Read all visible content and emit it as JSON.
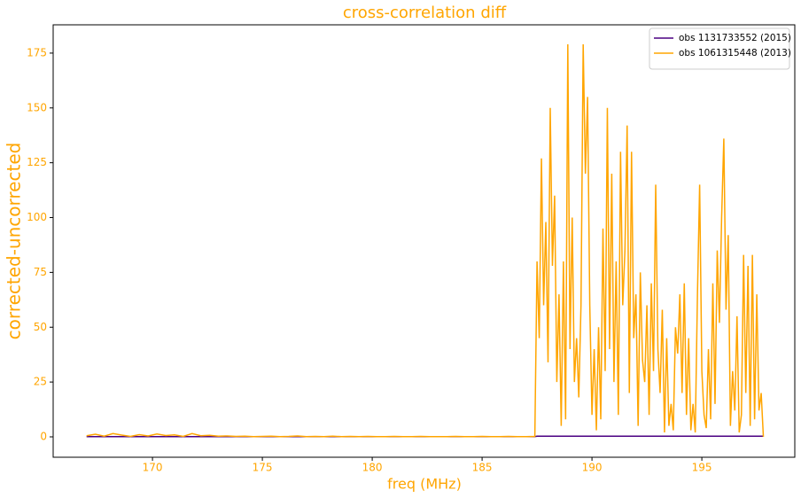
{
  "chart_data": {
    "type": "line",
    "title": "cross-correlation diff",
    "xlabel": "freq (MHz)",
    "ylabel": "corrected-uncorrected",
    "x": [
      167,
      167.4,
      167.8,
      168.2,
      168.6,
      169,
      169.4,
      169.8,
      170.2,
      170.6,
      171,
      171.4,
      171.8,
      172.2,
      172.6,
      173,
      173.4,
      173.8,
      174.2,
      174.6,
      175,
      175.4,
      175.8,
      176.2,
      176.6,
      177,
      177.4,
      177.8,
      178.2,
      178.6,
      179,
      179.4,
      179.8,
      180.2,
      180.6,
      181,
      181.4,
      181.8,
      182.2,
      182.6,
      183,
      183.4,
      183.8,
      184.2,
      184.6,
      185,
      185.4,
      185.8,
      186.2,
      186.6,
      187,
      187.4,
      187.5,
      187.6,
      187.7,
      187.8,
      187.9,
      188,
      188.1,
      188.2,
      188.3,
      188.4,
      188.5,
      188.6,
      188.7,
      188.8,
      188.9,
      189,
      189.1,
      189.2,
      189.3,
      189.4,
      189.5,
      189.6,
      189.7,
      189.8,
      189.9,
      190,
      190.1,
      190.2,
      190.3,
      190.4,
      190.5,
      190.6,
      190.7,
      190.8,
      190.9,
      191,
      191.1,
      191.2,
      191.3,
      191.4,
      191.5,
      191.6,
      191.7,
      191.8,
      191.9,
      192,
      192.1,
      192.2,
      192.3,
      192.4,
      192.5,
      192.6,
      192.7,
      192.8,
      192.9,
      193,
      193.1,
      193.2,
      193.3,
      193.4,
      193.5,
      193.6,
      193.7,
      193.8,
      193.9,
      194,
      194.1,
      194.2,
      194.3,
      194.4,
      194.5,
      194.6,
      194.7,
      194.8,
      194.9,
      195,
      195.1,
      195.2,
      195.3,
      195.4,
      195.5,
      195.6,
      195.7,
      195.8,
      195.9,
      196,
      196.1,
      196.2,
      196.3,
      196.4,
      196.5,
      196.6,
      196.7,
      196.8,
      196.9,
      197,
      197.1,
      197.2,
      197.3,
      197.4,
      197.5,
      197.6,
      197.7,
      197.8
    ],
    "series": [
      {
        "name": "obs 1131733552 (2015)",
        "color": "#4b0082",
        "values": [
          0.1,
          0.1,
          0.1,
          0.1,
          0.1,
          0.1,
          0.1,
          0.1,
          0.1,
          0.1,
          0.1,
          0.1,
          0.1,
          0.1,
          0.1,
          0.1,
          0.1,
          0.1,
          0.1,
          0.1,
          0.1,
          0.1,
          0.1,
          0.1,
          0.1,
          0.1,
          0.1,
          0.1,
          0.1,
          0.1,
          0.1,
          0.1,
          0.1,
          0.1,
          0.1,
          0.1,
          0.1,
          0.1,
          0.1,
          0.1,
          0.1,
          0.1,
          0.1,
          0.1,
          0.1,
          0.1,
          0.1,
          0.1,
          0.1,
          0.1,
          0.1,
          0.1,
          0.3,
          0.3,
          0.3,
          0.3,
          0.3,
          0.3,
          0.3,
          0.3,
          0.3,
          0.3,
          0.3,
          0.3,
          0.3,
          0.3,
          0.3,
          0.3,
          0.3,
          0.3,
          0.3,
          0.3,
          0.3,
          0.3,
          0.3,
          0.3,
          0.3,
          0.3,
          0.3,
          0.3,
          0.3,
          0.3,
          0.3,
          0.3,
          0.3,
          0.3,
          0.3,
          0.3,
          0.3,
          0.3,
          0.3,
          0.3,
          0.3,
          0.3,
          0.3,
          0.3,
          0.3,
          0.3,
          0.3,
          0.3,
          0.3,
          0.3,
          0.3,
          0.3,
          0.3,
          0.3,
          0.3,
          0.3,
          0.3,
          0.3,
          0.3,
          0.3,
          0.3,
          0.3,
          0.3,
          0.3,
          0.3,
          0.3,
          0.3,
          0.3,
          0.3,
          0.3,
          0.3,
          0.3,
          0.3,
          0.3,
          0.3,
          0.3,
          0.3,
          0.3,
          0.3,
          0.3,
          0.3,
          0.3,
          0.3,
          0.3,
          0.3,
          0.3,
          0.3,
          0.3,
          0.3,
          0.3,
          0.3,
          0.3,
          0.3,
          0.3,
          0.3,
          0.3,
          0.3,
          0.3,
          0.3,
          0.3,
          0.3,
          0.3,
          0.3,
          0.3
        ]
      },
      {
        "name": "obs 1061315448 (2013)",
        "color": "#ffa500",
        "values": [
          0.5,
          1.2,
          0.3,
          1.5,
          0.8,
          0.2,
          1.0,
          0.4,
          1.3,
          0.6,
          0.9,
          0.2,
          1.5,
          0.5,
          0.7,
          0.3,
          0.4,
          0.2,
          0.3,
          0.1,
          0.2,
          0.3,
          0.1,
          0.2,
          0.4,
          0.1,
          0.2,
          0.1,
          0.3,
          0.1,
          0.2,
          0.1,
          0.2,
          0.1,
          0.1,
          0.2,
          0.1,
          0.1,
          0.2,
          0.1,
          0.1,
          0.1,
          0.2,
          0.1,
          0.1,
          0.2,
          0.1,
          0.1,
          0.2,
          0.1,
          0.1,
          0.2,
          80,
          45,
          127,
          60,
          98,
          34,
          150,
          78,
          110,
          25,
          65,
          5,
          80,
          8,
          179,
          40,
          100,
          25,
          45,
          18,
          60,
          179,
          120,
          155,
          60,
          10,
          40,
          3,
          50,
          8,
          95,
          30,
          150,
          40,
          120,
          25,
          80,
          10,
          130,
          60,
          85,
          142,
          20,
          130,
          45,
          65,
          5,
          75,
          35,
          25,
          60,
          10,
          70,
          30,
          115,
          40,
          20,
          58,
          2,
          45,
          5,
          15,
          3,
          50,
          38,
          65,
          20,
          70,
          10,
          45,
          3,
          15,
          2,
          65,
          115,
          30,
          10,
          4,
          40,
          8,
          70,
          15,
          85,
          52,
          100,
          136,
          58,
          92,
          5,
          30,
          12,
          55,
          2,
          10,
          83,
          20,
          78,
          5,
          83,
          8,
          65,
          12,
          20,
          0
        ]
      }
    ],
    "xlim": [
      165.48,
      199.23
    ],
    "ylim": [
      -9.3,
      187.9
    ],
    "xticks": [
      170,
      175,
      180,
      185,
      190,
      195
    ],
    "yticks": [
      0,
      25,
      50,
      75,
      100,
      125,
      150,
      175
    ],
    "legend": "upper right"
  }
}
